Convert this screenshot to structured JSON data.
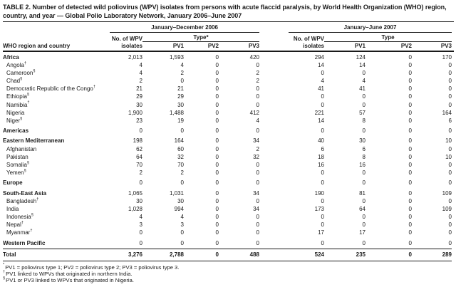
{
  "title": "TABLE 2. Number of detected wild poliovirus (WPV) isolates from persons with acute flaccid paralysis, by World Health Organization (WHO) region, country, and year — Global Polio Laboratory Network, January 2006–June 2007",
  "header": {
    "row_label": "WHO region and country",
    "groups": [
      {
        "period": "January–December 2006",
        "isolates_line1": "No. of WPV",
        "isolates_line2": "isolates",
        "type": "Type*",
        "subcols": [
          "PV1",
          "PV2",
          "PV3"
        ]
      },
      {
        "period": "January–June 2007",
        "isolates_line1": "No. of WPV",
        "isolates_line2": "isolates",
        "type": "Type",
        "subcols": [
          "PV1",
          "PV2",
          "PV3"
        ]
      }
    ]
  },
  "rows": [
    {
      "label": "Africa",
      "marker": "",
      "kind": "region",
      "gap": false,
      "values": [
        "2,013",
        "1,593",
        "0",
        "420",
        "294",
        "124",
        "0",
        "170"
      ]
    },
    {
      "label": "Angola",
      "marker": "†",
      "kind": "country",
      "gap": false,
      "values": [
        "4",
        "4",
        "0",
        "0",
        "14",
        "14",
        "0",
        "0"
      ]
    },
    {
      "label": "Cameroon",
      "marker": "§",
      "kind": "country",
      "gap": false,
      "values": [
        "4",
        "2",
        "0",
        "2",
        "0",
        "0",
        "0",
        "0"
      ]
    },
    {
      "label": "Chad",
      "marker": "§",
      "kind": "country",
      "gap": false,
      "values": [
        "2",
        "0",
        "0",
        "2",
        "4",
        "4",
        "0",
        "0"
      ]
    },
    {
      "label": "Democratic Republic of the Congo",
      "marker": "†",
      "kind": "country",
      "gap": false,
      "values": [
        "21",
        "21",
        "0",
        "0",
        "41",
        "41",
        "0",
        "0"
      ]
    },
    {
      "label": "Ethiopia",
      "marker": "§",
      "kind": "country",
      "gap": false,
      "values": [
        "29",
        "29",
        "0",
        "0",
        "0",
        "0",
        "0",
        "0"
      ]
    },
    {
      "label": "Namibia",
      "marker": "†",
      "kind": "country",
      "gap": false,
      "values": [
        "30",
        "30",
        "0",
        "0",
        "0",
        "0",
        "0",
        "0"
      ]
    },
    {
      "label": "Nigeria",
      "marker": "",
      "kind": "country",
      "gap": false,
      "values": [
        "1,900",
        "1,488",
        "0",
        "412",
        "221",
        "57",
        "0",
        "164"
      ]
    },
    {
      "label": "Niger",
      "marker": "§",
      "kind": "country",
      "gap": false,
      "values": [
        "23",
        "19",
        "0",
        "4",
        "14",
        "8",
        "0",
        "6"
      ]
    },
    {
      "label": "Americas",
      "marker": "",
      "kind": "region",
      "gap": true,
      "values": [
        "0",
        "0",
        "0",
        "0",
        "0",
        "0",
        "0",
        "0"
      ]
    },
    {
      "label": "Eastern Mediterranean",
      "marker": "",
      "kind": "region",
      "gap": true,
      "values": [
        "198",
        "164",
        "0",
        "34",
        "40",
        "30",
        "0",
        "10"
      ]
    },
    {
      "label": "Afghanistan",
      "marker": "",
      "kind": "country",
      "gap": false,
      "values": [
        "62",
        "60",
        "0",
        "2",
        "6",
        "6",
        "0",
        "0"
      ]
    },
    {
      "label": "Pakistan",
      "marker": "",
      "kind": "country",
      "gap": false,
      "values": [
        "64",
        "32",
        "0",
        "32",
        "18",
        "8",
        "0",
        "10"
      ]
    },
    {
      "label": "Somalia",
      "marker": "§",
      "kind": "country",
      "gap": false,
      "values": [
        "70",
        "70",
        "0",
        "0",
        "16",
        "16",
        "0",
        "0"
      ]
    },
    {
      "label": "Yemen",
      "marker": "§",
      "kind": "country",
      "gap": false,
      "values": [
        "2",
        "2",
        "0",
        "0",
        "0",
        "0",
        "0",
        "0"
      ]
    },
    {
      "label": "Europe",
      "marker": "",
      "kind": "region",
      "gap": true,
      "values": [
        "0",
        "0",
        "0",
        "0",
        "0",
        "0",
        "0",
        "0"
      ]
    },
    {
      "label": "South-East Asia",
      "marker": "",
      "kind": "region",
      "gap": true,
      "values": [
        "1,065",
        "1,031",
        "0",
        "34",
        "190",
        "81",
        "0",
        "109"
      ]
    },
    {
      "label": "Bangladesh",
      "marker": "†",
      "kind": "country",
      "gap": false,
      "values": [
        "30",
        "30",
        "0",
        "0",
        "0",
        "0",
        "0",
        "0"
      ]
    },
    {
      "label": "India",
      "marker": "",
      "kind": "country",
      "gap": false,
      "values": [
        "1,028",
        "994",
        "0",
        "34",
        "173",
        "64",
        "0",
        "109"
      ]
    },
    {
      "label": "Indonesia",
      "marker": "§",
      "kind": "country",
      "gap": false,
      "values": [
        "4",
        "4",
        "0",
        "0",
        "0",
        "0",
        "0",
        "0"
      ]
    },
    {
      "label": "Nepal",
      "marker": "†",
      "kind": "country",
      "gap": false,
      "values": [
        "3",
        "3",
        "0",
        "0",
        "0",
        "0",
        "0",
        "0"
      ]
    },
    {
      "label": "Myanmar",
      "marker": "†",
      "kind": "country",
      "gap": false,
      "values": [
        "0",
        "0",
        "0",
        "0",
        "17",
        "17",
        "0",
        "0"
      ]
    },
    {
      "label": "Western Pacific",
      "marker": "",
      "kind": "region",
      "gap": true,
      "values": [
        "0",
        "0",
        "0",
        "0",
        "0",
        "0",
        "0",
        "0"
      ]
    },
    {
      "label": "Total",
      "marker": "",
      "kind": "total",
      "gap": false,
      "values": [
        "3,276",
        "2,788",
        "0",
        "488",
        "524",
        "235",
        "0",
        "289"
      ]
    }
  ],
  "footnotes": [
    {
      "marker": "*",
      "text": "PV1 = poliovirus type 1; PV2 = poliovirus type 2; PV3 = poliovirus type 3."
    },
    {
      "marker": "†",
      "text": "PV1 linked to WPVs that originated in northern India."
    },
    {
      "marker": "§",
      "text": "PV1 or PV3 linked to WPVs that originated in Nigeria."
    }
  ],
  "colors": {
    "text": "#1a1a1a",
    "rule": "#1a1a1a",
    "background": "#ffffff"
  }
}
